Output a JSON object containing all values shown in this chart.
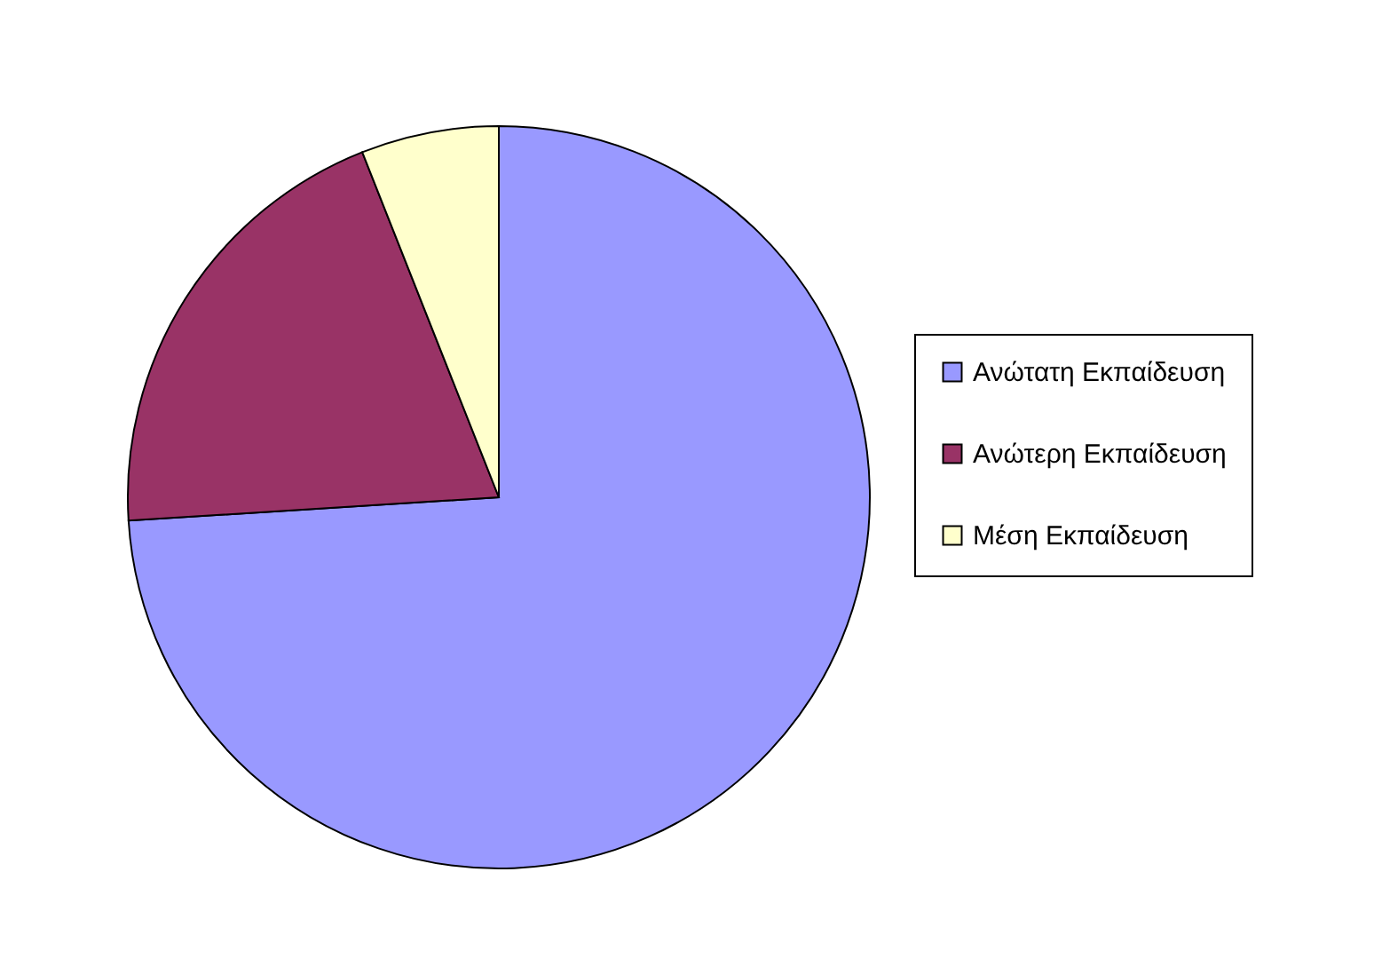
{
  "chart_data": {
    "type": "pie",
    "categories": [
      "Ανώτατη Εκπαίδευση",
      "Ανώτερη Εκπαίδευση",
      "Μέση Εκπαίδευση"
    ],
    "values": [
      74,
      20,
      6
    ],
    "colors": [
      "#9999ff",
      "#993366",
      "#ffffcc"
    ],
    "legend": "right"
  }
}
